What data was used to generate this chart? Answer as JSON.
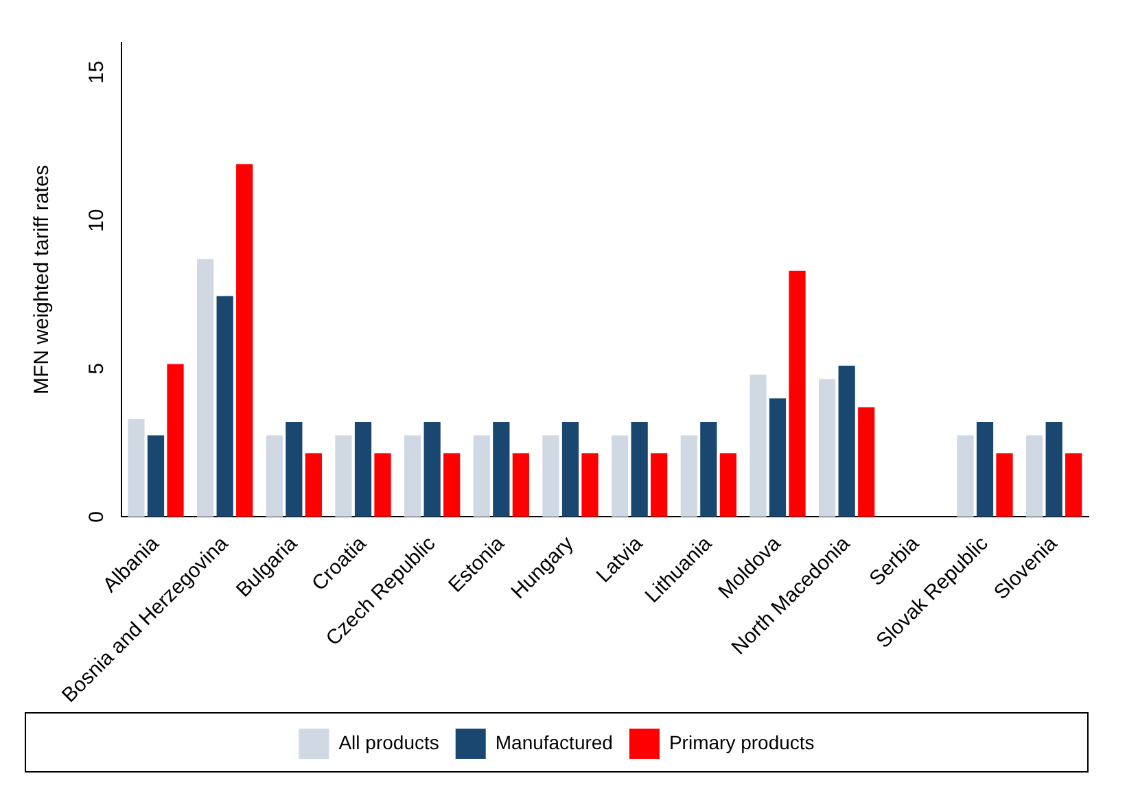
{
  "chart_data": {
    "type": "bar",
    "ylabel": "MFN weighted tariff rates",
    "categories": [
      "Albania",
      "Bosnia and Herzegovina",
      "Bulgaria",
      "Croatia",
      "Czech Republic",
      "Estonia",
      "Hungary",
      "Latvia",
      "Lithuania",
      "Moldova",
      "North Macedonia",
      "Serbia",
      "Slovak Republic",
      "Slovenia"
    ],
    "series": [
      {
        "name": "All products",
        "color": "#d0d9e3",
        "values": [
          3.3,
          8.7,
          2.75,
          2.75,
          2.75,
          2.75,
          2.75,
          2.75,
          2.75,
          4.8,
          4.65,
          null,
          2.75,
          2.75
        ]
      },
      {
        "name": "Manufactured",
        "color": "#1a476f",
        "values": [
          2.75,
          7.45,
          3.2,
          3.2,
          3.2,
          3.2,
          3.2,
          3.2,
          3.2,
          4.0,
          5.1,
          null,
          3.2,
          3.2
        ]
      },
      {
        "name": "Primary products",
        "color": "#ff0000",
        "values": [
          5.15,
          11.9,
          2.15,
          2.15,
          2.15,
          2.15,
          2.15,
          2.15,
          2.15,
          8.3,
          3.7,
          null,
          2.15,
          2.15
        ]
      }
    ],
    "ylim": [
      0,
      16
    ],
    "yticks": [
      0,
      5,
      10,
      15
    ],
    "grid": false,
    "legend": "bottom"
  }
}
